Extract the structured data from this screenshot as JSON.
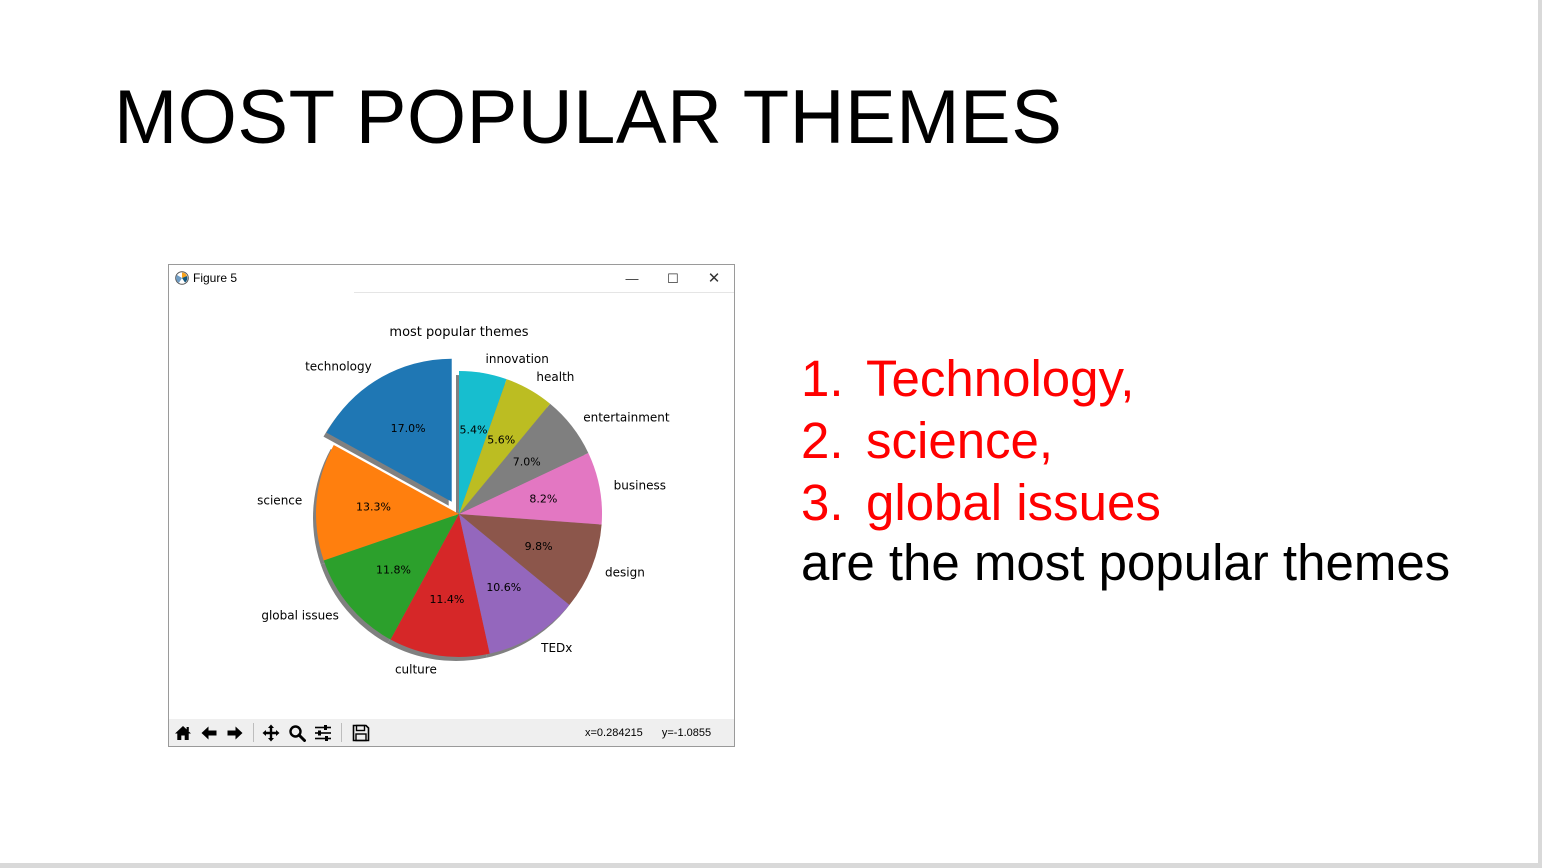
{
  "slide": {
    "title": "MOST POPULAR THEMES"
  },
  "figure_window": {
    "title": "Figure 5",
    "icon": "matplotlib-icon",
    "window_buttons": {
      "minimize": "—",
      "maximize": "☐",
      "close": "✕"
    },
    "toolbar": {
      "buttons": [
        "home-icon",
        "back-icon",
        "forward-icon",
        "pan-icon",
        "zoom-icon",
        "configure-subplots-icon",
        "save-icon"
      ],
      "coord_x": "x=0.284215",
      "coord_y": "y=-1.0855"
    }
  },
  "chart_data": {
    "type": "pie",
    "title": "most popular themes",
    "labels": [
      "technology",
      "science",
      "global issues",
      "culture",
      "TEDx",
      "design",
      "business",
      "entertainment",
      "health",
      "innovation"
    ],
    "values": [
      17.0,
      13.3,
      11.8,
      11.4,
      10.6,
      9.8,
      8.2,
      7.0,
      5.6,
      5.4
    ],
    "pct_labels": [
      "17.0%",
      "13.3%",
      "11.8%",
      "11.4%",
      "10.6%",
      "9.8%",
      "8.2%",
      "7.0%",
      "5.6%",
      "5.4%"
    ],
    "colors": [
      "#1f77b4",
      "#ff7f0e",
      "#2ca02c",
      "#d62728",
      "#9467bd",
      "#8c564b",
      "#e377c2",
      "#7f7f7f",
      "#bcbd22",
      "#17becf"
    ],
    "start_angle_deg": 90,
    "direction": "counterclockwise",
    "explode": [
      0.1,
      0,
      0,
      0,
      0,
      0,
      0,
      0,
      0,
      0
    ],
    "shadow": true
  },
  "summary": {
    "items": [
      {
        "num": "1.",
        "text": "Technology,"
      },
      {
        "num": "2.",
        "text": "science,"
      },
      {
        "num": "3.",
        "text": "global issues"
      }
    ],
    "tail": "are the most popular themes",
    "highlight_color": "#ff0000"
  }
}
